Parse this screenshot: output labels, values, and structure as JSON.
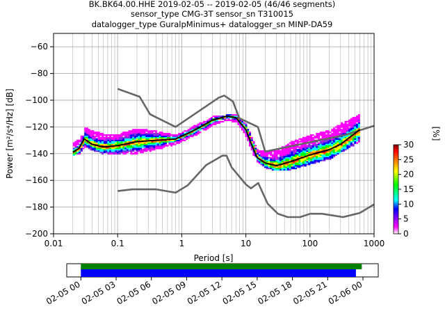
{
  "title_lines": [
    "BK.BK64.00.HHE   2019-02-05 -- 2019-02-05  (46/46 segments)",
    "sensor_type CMG-3T sensor_sn T310015",
    "datalogger_type GuralpMinimus+ datalogger_sn MINP-DA59"
  ],
  "colorbar": {
    "label": "[%]",
    "range": [
      0,
      30
    ],
    "ticks": [
      "0",
      "5",
      "10",
      "15",
      "20",
      "25",
      "30"
    ],
    "colors": [
      "#ffffff",
      "#ff00ff",
      "#0000ff",
      "#00ffff",
      "#00ff00",
      "#ffff00",
      "#ff8000",
      "#ff0000",
      "#800000"
    ]
  },
  "chart_data": [
    {
      "type": "heatmap",
      "xlabel": "Period [s]",
      "ylabel": "Power [m²/s⁴/Hz] [dB]",
      "xscale": "log",
      "xlim": [
        0.01,
        1000
      ],
      "ylim": [
        -200,
        -50
      ],
      "grid": true,
      "x_ticks": [
        "0.01",
        "0.1",
        "1",
        "10",
        "100",
        "1000"
      ],
      "y_ticks": [
        "−200",
        "−180",
        "−160",
        "−140",
        "−120",
        "−100",
        "−80",
        "−60"
      ],
      "reference_models": [
        {
          "kind": "upper",
          "period": [
            0.1,
            0.22,
            0.32,
            0.8,
            3.8,
            4.6,
            6.3,
            7.9,
            15.4,
            20,
            354.8,
            10000
          ],
          "power": [
            -91.5,
            -97.4,
            -110.5,
            -120,
            -98,
            -96.5,
            -101,
            -113.5,
            -120,
            -138.5,
            -126,
            -104
          ]
        },
        {
          "kind": "lower",
          "period": [
            0.1,
            0.17,
            0.4,
            0.8,
            1.24,
            2.4,
            4.3,
            5,
            6,
            10,
            12,
            15.6,
            21.9,
            31.6,
            45,
            70,
            101,
            154,
            328,
            600,
            1000
          ],
          "power": [
            -168,
            -166.7,
            -166.7,
            -169.2,
            -163.7,
            -148.6,
            -141.5,
            -141.5,
            -150.2,
            -163,
            -166,
            -162,
            -177.5,
            -185,
            -187.5,
            -187.5,
            -185,
            -185,
            -187.5,
            -184.4,
            -178
          ]
        }
      ],
      "mode_curve": {
        "period": [
          0.02,
          0.025,
          0.03,
          0.04,
          0.06,
          0.1,
          0.2,
          0.4,
          0.8,
          1.5,
          3,
          5,
          7,
          10,
          12,
          15,
          20,
          30,
          50,
          100,
          200,
          300,
          600
        ],
        "power": [
          -139,
          -136,
          -129,
          -133,
          -135,
          -134,
          -131,
          -130,
          -129,
          -123,
          -115,
          -112,
          -113,
          -122,
          -132,
          -143,
          -147,
          -149,
          -146,
          -141,
          -137,
          -133,
          -122
        ]
      },
      "psd_band": {
        "period": [
          0.02,
          0.025,
          0.03,
          0.04,
          0.06,
          0.1,
          0.2,
          0.4,
          0.8,
          1.5,
          3,
          5,
          7,
          10,
          12,
          15,
          20,
          30,
          50,
          100,
          200,
          300,
          600
        ],
        "upper": [
          -132,
          -130,
          -121,
          -124,
          -126,
          -126,
          -122,
          -124,
          -127,
          -120,
          -113,
          -111,
          -112,
          -119,
          -129,
          -138,
          -139,
          -138,
          -132,
          -127,
          -123,
          -118,
          -111
        ],
        "lower": [
          -141,
          -139,
          -134,
          -137,
          -140,
          -140,
          -139,
          -136,
          -132,
          -126,
          -118,
          -114,
          -116,
          -127,
          -138,
          -146,
          -150,
          -152,
          -151,
          -147,
          -143,
          -138,
          -130
        ]
      }
    },
    {
      "type": "bar",
      "description": "data coverage",
      "x_ticks": [
        "02-05 00",
        "02-05 03",
        "02-05 06",
        "02-05 09",
        "02-05 12",
        "02-05 15",
        "02-05 18",
        "02-05 21",
        "02-06 00"
      ],
      "x_start_hours": 0,
      "x_end_hours": 24,
      "xlim_hours": [
        -1.2,
        25.3
      ],
      "bars": [
        {
          "color": "#008000",
          "start_hours": 0,
          "end_hours": 23.9
        },
        {
          "color": "#0000ff",
          "start_hours": 0,
          "end_hours": 23.4
        }
      ]
    }
  ]
}
